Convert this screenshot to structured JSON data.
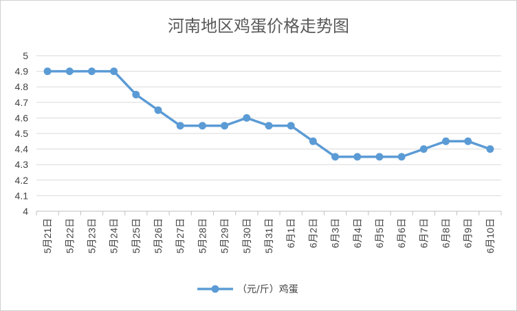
{
  "chart_data": {
    "type": "line",
    "title": "河南地区鸡蛋价格走势图",
    "categories": [
      "5月21日",
      "5月22日",
      "5月23日",
      "5月24日",
      "5月25日",
      "5月26日",
      "5月27日",
      "5月28日",
      "5月29日",
      "5月30日",
      "5月31日",
      "6月1日",
      "6月2日",
      "6月3日",
      "6月4日",
      "6月5日",
      "6月6日",
      "6月7日",
      "6月8日",
      "6月9日",
      "6月10日"
    ],
    "series": [
      {
        "name": "（元/斤）鸡蛋",
        "values": [
          4.9,
          4.9,
          4.9,
          4.9,
          4.75,
          4.65,
          4.55,
          4.55,
          4.55,
          4.6,
          4.55,
          4.55,
          4.45,
          4.35,
          4.35,
          4.35,
          4.35,
          4.4,
          4.45,
          4.45,
          4.4
        ]
      }
    ],
    "ylim": [
      4,
      5
    ],
    "yticks": [
      "4",
      "4.1",
      "4.2",
      "4.3",
      "4.4",
      "4.5",
      "4.6",
      "4.7",
      "4.8",
      "4.9",
      "5"
    ],
    "grid": true,
    "legend": "bottom",
    "colors": {
      "line": "#5b9bd5",
      "grid": "#d9d9d9",
      "axis": "#bfbfbf"
    }
  }
}
